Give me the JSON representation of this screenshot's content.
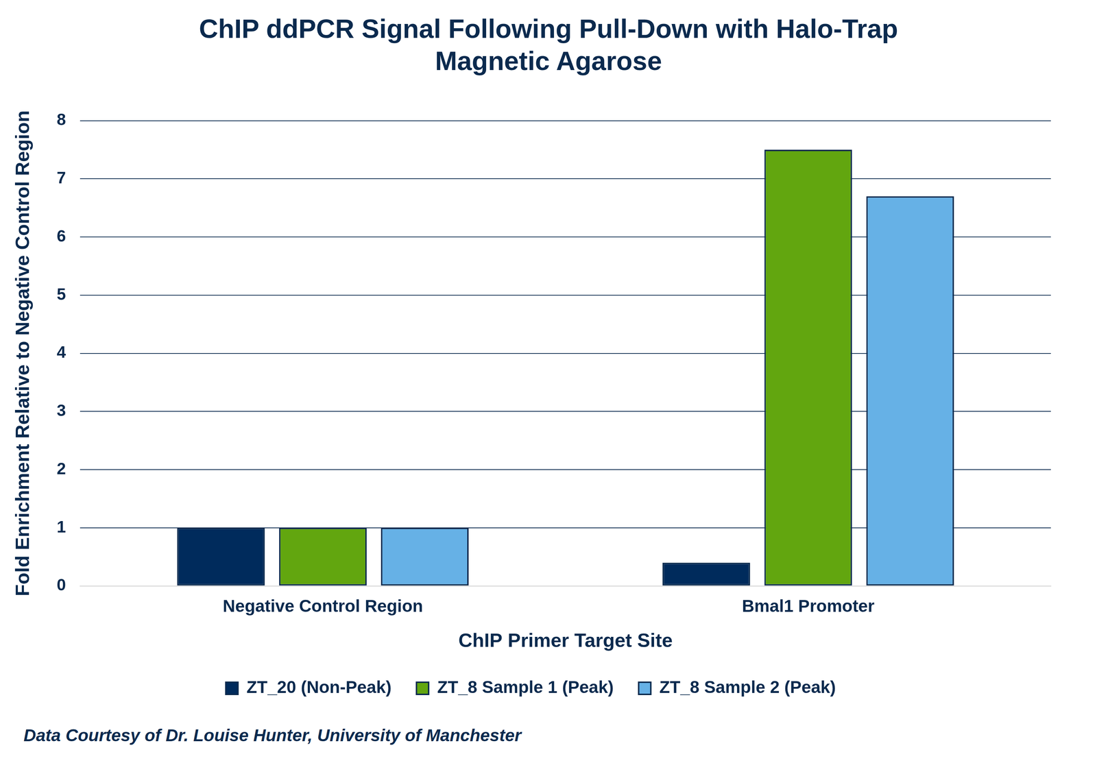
{
  "chart_data": {
    "type": "bar",
    "title": "ChIP ddPCR Signal Following Pull-Down with Halo-Trap Magnetic Agarose",
    "x_label": "ChIP Primer Target Site",
    "y_label": "Fold Enrichment Relative to Negative Control Region",
    "categories": [
      "Negative Control Region",
      "Bmal1 Promoter"
    ],
    "series": [
      {
        "name": "ZT_20 (Non-Peak)",
        "color": "#002b5c",
        "values": [
          1,
          0.4
        ]
      },
      {
        "name": "ZT_8 Sample 1 (Peak)",
        "color": "#62a60f",
        "values": [
          1,
          7.5
        ]
      },
      {
        "name": "ZT_8 Sample 2 (Peak)",
        "color": "#66b1e6",
        "values": [
          1,
          6.7
        ]
      }
    ],
    "ylim": [
      0,
      8
    ],
    "yticks": [
      0,
      1,
      2,
      3,
      4,
      5,
      6,
      7,
      8
    ],
    "grid": true,
    "legend": "bottom",
    "annotations": [
      "Data Courtesy of Dr. Louise Hunter, University of Manchester"
    ]
  }
}
